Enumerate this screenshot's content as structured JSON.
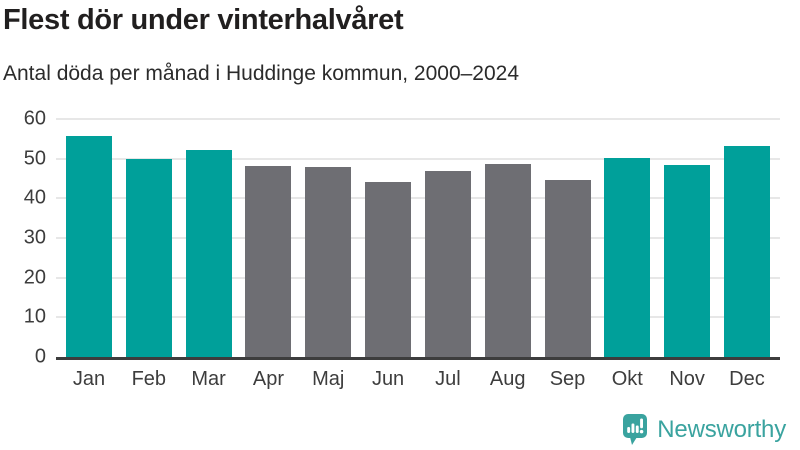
{
  "header": {
    "title": "Flest dör under vinterhalvåret",
    "subtitle": "Antal döda per månad i Huddinge kommun, 2000–2024"
  },
  "footer": {
    "brand": "Newsworthy",
    "logo_icon": "newsworthy-speech-bubble-barchart-icon"
  },
  "colors": {
    "winter_bar": "#00a09a",
    "summer_bar": "#6e6e73",
    "gridline": "#e7e7e7",
    "axis_line": "#3d3d3d",
    "tick_text": "#3d3d3d",
    "title_text": "#211f1f",
    "logo_teal": "#3aa39f"
  },
  "chart_data": {
    "type": "bar",
    "title": "Flest dör under vinterhalvåret",
    "subtitle": "Antal döda per månad i Huddinge kommun, 2000–2024",
    "categories": [
      "Jan",
      "Feb",
      "Mar",
      "Apr",
      "Maj",
      "Jun",
      "Jul",
      "Aug",
      "Sep",
      "Okt",
      "Nov",
      "Dec"
    ],
    "values": [
      55.7,
      49.8,
      52.3,
      48.1,
      47.8,
      44.1,
      47.0,
      48.6,
      44.5,
      50.1,
      48.3,
      53.1
    ],
    "color_groups": [
      "winter",
      "winter",
      "winter",
      "summer",
      "summer",
      "summer",
      "summer",
      "summer",
      "summer",
      "winter",
      "winter",
      "winter"
    ],
    "xlabel": "",
    "ylabel": "",
    "ylim": [
      0,
      60
    ],
    "yticks": [
      0,
      10,
      20,
      30,
      40,
      50,
      60
    ],
    "grid": true,
    "legend": "none"
  }
}
